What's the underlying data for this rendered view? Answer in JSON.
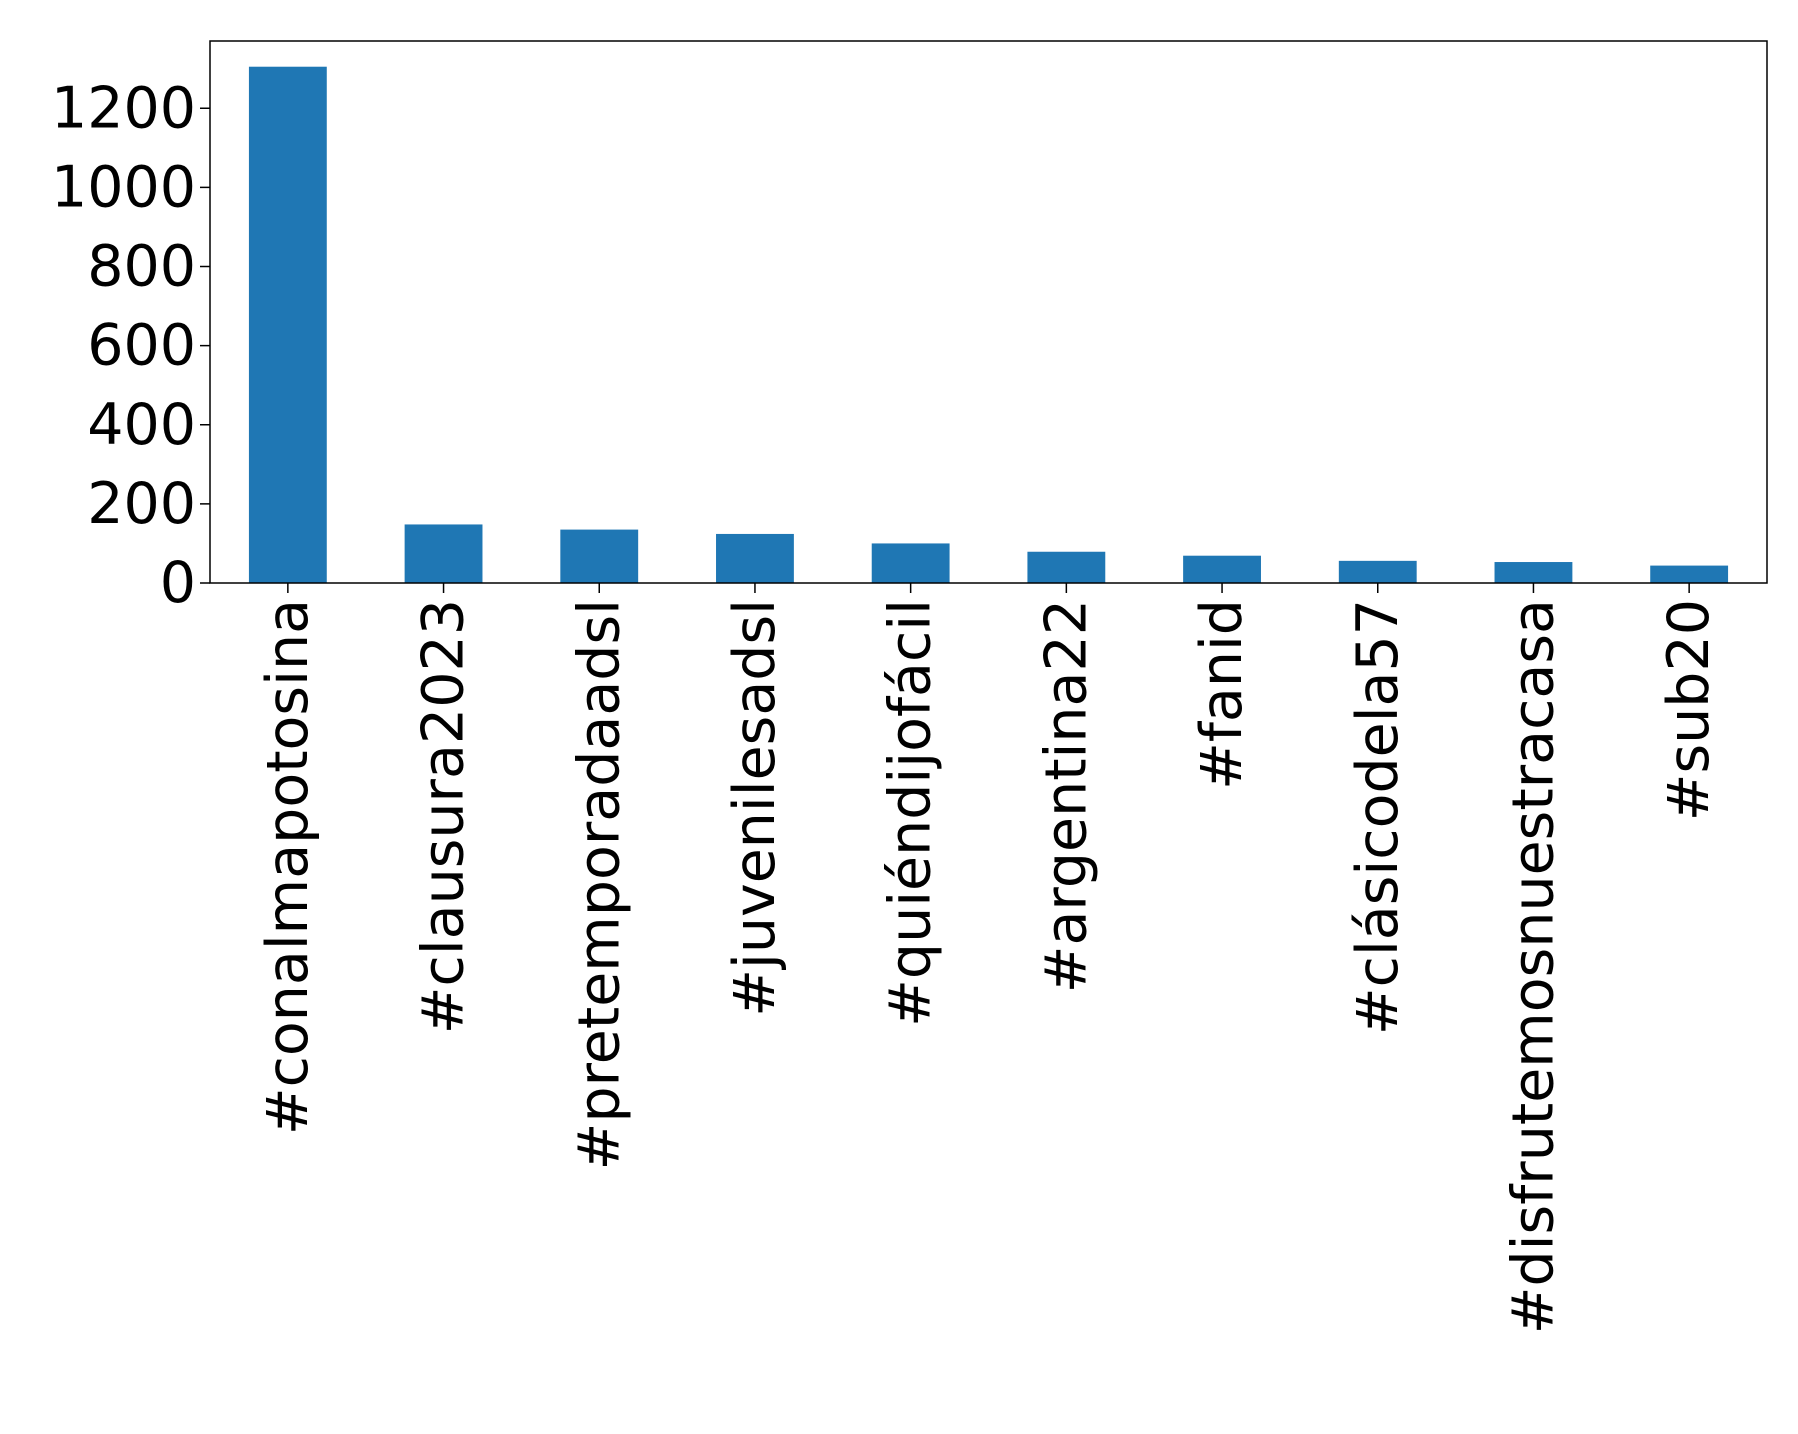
{
  "chart_data": {
    "type": "bar",
    "title": "",
    "xlabel": "",
    "ylabel": "",
    "categories": [
      "#conalmapotosina",
      "#clausura2023",
      "#pretemporadaadsl",
      "#juvenilesadsl",
      "#quiéndijofácil",
      "#argentina22",
      "#fanid",
      "#clásicodela57",
      "#disfrutemosnuestracasa",
      "#sub20"
    ],
    "values": [
      1305,
      148,
      135,
      124,
      100,
      79,
      69,
      56,
      53,
      44
    ],
    "ylim": [
      0,
      1370
    ],
    "yticks": [
      0,
      200,
      400,
      600,
      800,
      1000,
      1200
    ],
    "grid": false,
    "legend": "none",
    "bar_color": "#1f77b4"
  }
}
